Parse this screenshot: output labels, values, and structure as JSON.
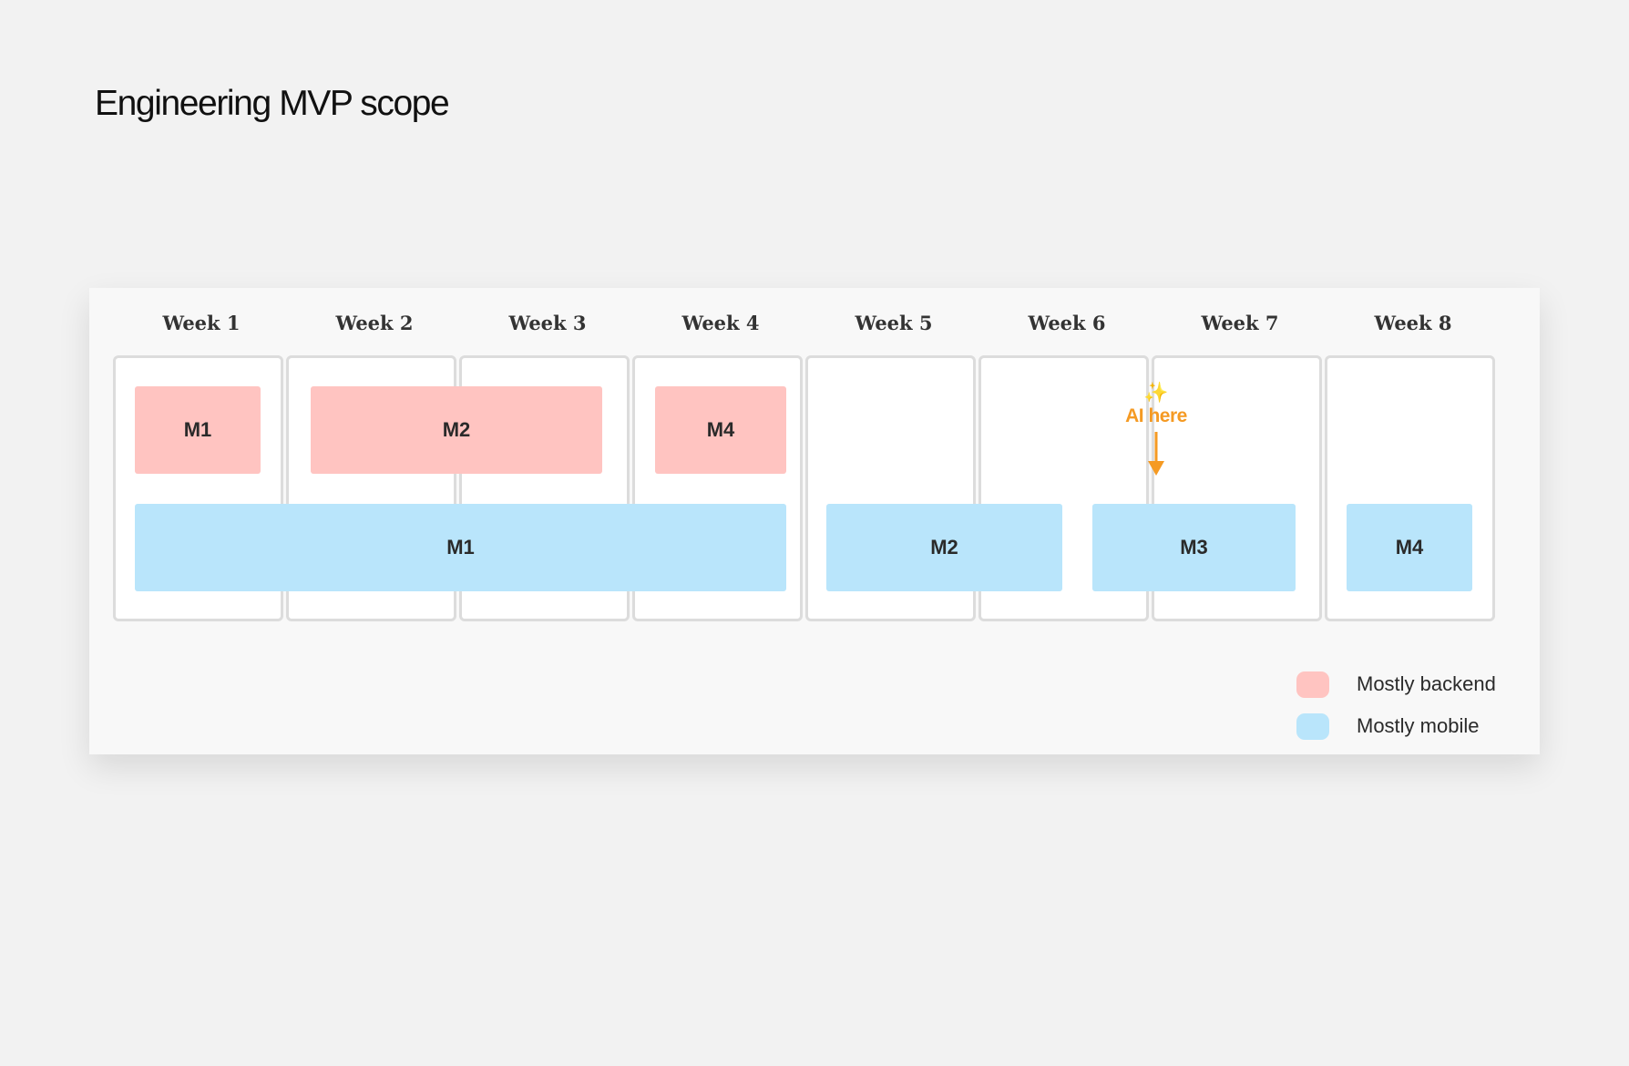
{
  "title": "Engineering MVP scope",
  "weeks": [
    "Week 1",
    "Week 2",
    "Week 3",
    "Week 4",
    "Week 5",
    "Week 6",
    "Week 7",
    "Week 8"
  ],
  "backend_blocks": [
    "M1",
    "M2",
    "M4"
  ],
  "mobile_blocks": [
    "M1",
    "M2",
    "M3",
    "M4"
  ],
  "annotation": {
    "icon": "sparkles-icon",
    "sparkle": "✨",
    "text": "AI here",
    "color": "#f59a23"
  },
  "legend": [
    {
      "label": "Mostly backend",
      "color": "#ffc4c1"
    },
    {
      "label": "Mostly mobile",
      "color": "#b9e5fb"
    }
  ],
  "colors": {
    "backend": "#ffc4c1",
    "mobile": "#b9e5fb",
    "accent": "#f59a23"
  }
}
